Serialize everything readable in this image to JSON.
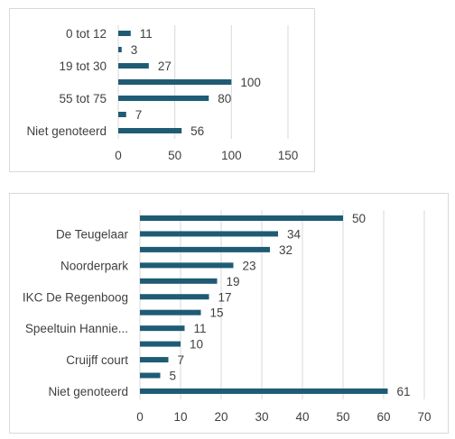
{
  "chart_data": [
    {
      "type": "bar",
      "orientation": "horizontal",
      "categories": [
        "0 tot 12",
        "",
        "19 tot 30",
        "",
        "55 tot 75",
        "",
        "Niet genoteerd"
      ],
      "values": [
        11,
        3,
        27,
        100,
        80,
        7,
        56
      ],
      "x_ticks": [
        0,
        50,
        100,
        150
      ],
      "xlim": [
        0,
        150
      ],
      "grid": true,
      "bar_color": "#1f5c74"
    },
    {
      "type": "bar",
      "orientation": "horizontal",
      "categories": [
        "",
        "De Teugelaar",
        "",
        "Noorderpark",
        "",
        "IKC De Regenboog",
        "",
        "Speeltuin Hannie...",
        "",
        "Cruijff court",
        "",
        "Niet genoteerd"
      ],
      "values": [
        50,
        34,
        32,
        23,
        19,
        17,
        15,
        11,
        10,
        7,
        5,
        61
      ],
      "x_ticks": [
        0,
        10,
        20,
        30,
        40,
        50,
        60,
        70
      ],
      "xlim": [
        0,
        70
      ],
      "grid": true,
      "bar_color": "#1f5c74"
    }
  ]
}
